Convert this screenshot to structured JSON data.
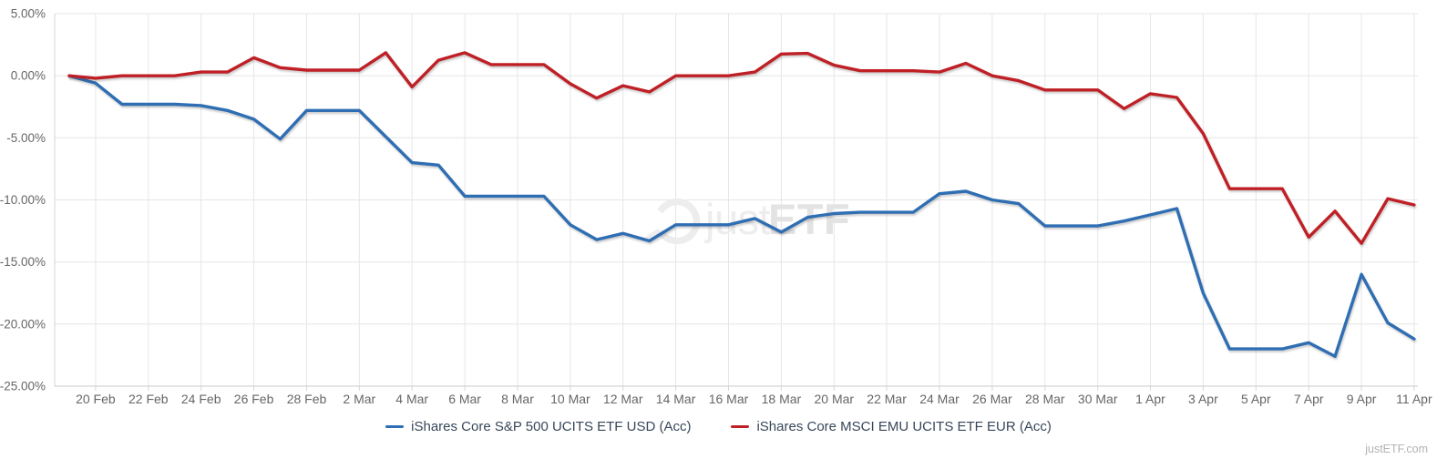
{
  "chart_data": {
    "type": "line",
    "title": "",
    "grid": true,
    "legend_position": "bottom",
    "ylim": [
      -25,
      5
    ],
    "y_tick_values": [
      5,
      0,
      -5,
      -10,
      -15,
      -20,
      -25
    ],
    "y_tick_labels": [
      "5.00%",
      "0.00%",
      "-5.00%",
      "-10.00%",
      "-15.00%",
      "-20.00%",
      "-25.00%"
    ],
    "x_tick_labels": [
      "20 Feb",
      "22 Feb",
      "24 Feb",
      "26 Feb",
      "28 Feb",
      "2 Mar",
      "4 Mar",
      "6 Mar",
      "8 Mar",
      "10 Mar",
      "12 Mar",
      "14 Mar",
      "16 Mar",
      "18 Mar",
      "20 Mar",
      "22 Mar",
      "24 Mar",
      "26 Mar",
      "28 Mar",
      "30 Mar",
      "1 Apr",
      "3 Apr",
      "5 Apr",
      "7 Apr",
      "9 Apr",
      "11 Apr"
    ],
    "dates": [
      "19 Feb",
      "20 Feb",
      "21 Feb",
      "22 Feb",
      "23 Feb",
      "24 Feb",
      "25 Feb",
      "26 Feb",
      "27 Feb",
      "28 Feb",
      "1 Mar",
      "2 Mar",
      "3 Mar",
      "4 Mar",
      "5 Mar",
      "6 Mar",
      "7 Mar",
      "8 Mar",
      "9 Mar",
      "10 Mar",
      "11 Mar",
      "12 Mar",
      "13 Mar",
      "14 Mar",
      "15 Mar",
      "16 Mar",
      "17 Mar",
      "18 Mar",
      "19 Mar",
      "20 Mar",
      "21 Mar",
      "22 Mar",
      "23 Mar",
      "24 Mar",
      "25 Mar",
      "26 Mar",
      "27 Mar",
      "28 Mar",
      "29 Mar",
      "30 Mar",
      "31 Mar",
      "1 Apr",
      "2 Apr",
      "3 Apr",
      "4 Apr",
      "5 Apr",
      "6 Apr",
      "7 Apr",
      "8 Apr",
      "9 Apr",
      "10 Apr",
      "11 Apr"
    ],
    "series": [
      {
        "name": "iShares Core S&P 500 UCITS ETF USD (Acc)",
        "color": "#2f6eb3",
        "values": [
          0.0,
          -0.6,
          -2.3,
          -2.3,
          -2.3,
          -2.4,
          -2.8,
          -3.5,
          -5.1,
          -2.8,
          -2.8,
          -2.8,
          -4.9,
          -7.0,
          -7.2,
          -9.7,
          -9.7,
          -9.7,
          -9.7,
          -12.0,
          -13.2,
          -12.7,
          -13.3,
          -12.0,
          -12.0,
          -12.0,
          -11.5,
          -12.6,
          -11.4,
          -11.1,
          -11.0,
          -11.0,
          -11.0,
          -9.5,
          -9.3,
          -10.0,
          -10.3,
          -12.1,
          -12.1,
          -12.1,
          -11.7,
          -11.2,
          -10.7,
          -17.5,
          -22.0,
          -22.0,
          -22.0,
          -21.5,
          -22.6,
          -16.0,
          -19.9,
          -21.2
        ]
      },
      {
        "name": "iShares Core MSCI EMU UCITS ETF EUR (Acc)",
        "color": "#bf2026",
        "values": [
          0.0,
          -0.2,
          0.0,
          0.0,
          0.0,
          0.3,
          0.3,
          1.45,
          0.65,
          0.45,
          0.45,
          0.45,
          1.85,
          -0.9,
          1.25,
          1.85,
          0.9,
          0.9,
          0.9,
          -0.65,
          -1.8,
          -0.8,
          -1.3,
          0.0,
          0.0,
          0.0,
          0.3,
          1.75,
          1.8,
          0.85,
          0.4,
          0.4,
          0.4,
          0.3,
          1.0,
          0.0,
          -0.4,
          -1.15,
          -1.15,
          -1.15,
          -2.65,
          -1.45,
          -1.75,
          -4.65,
          -9.1,
          -9.1,
          -9.1,
          -13.0,
          -10.9,
          -13.5,
          -9.9,
          -10.4
        ]
      }
    ]
  },
  "watermark": {
    "logo": "justetf-logo-icon",
    "text_light": "just",
    "text_bold": "ETF"
  },
  "footer": {
    "site_label": "justETF.com"
  },
  "colors": {
    "background": "#ffffff",
    "grid": "#e6e6e6",
    "axis": "#c9c9c9",
    "tick_mark": "#d6d6d6",
    "tick_label": "#666666",
    "legend_text": "#37475a",
    "watermark": "#ededed",
    "watermark_bold": "#e3e3e3"
  }
}
